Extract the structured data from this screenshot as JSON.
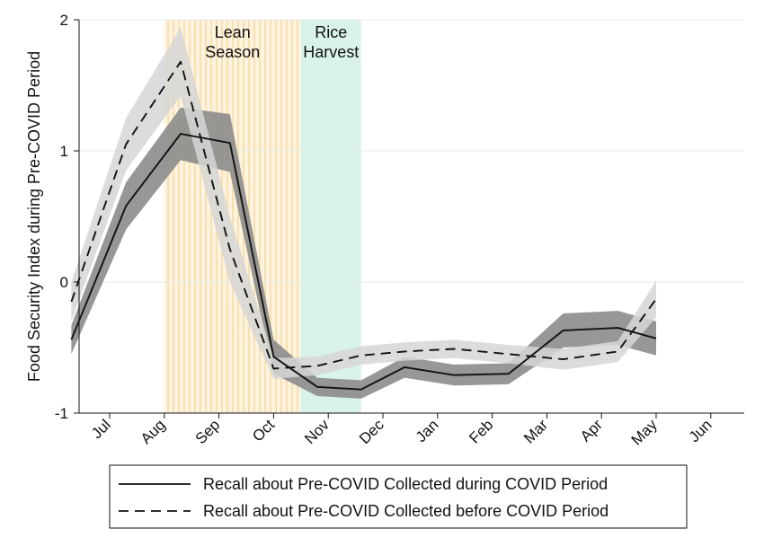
{
  "chart_data": {
    "type": "line",
    "ylabel": "Food Security Index during Pre-COVID Period",
    "xlabel": "",
    "ylim": [
      -1,
      2
    ],
    "y_ticks": [
      -1,
      0,
      1,
      2
    ],
    "month_ticks": [
      "Jul",
      "Aug",
      "Sep",
      "Oct",
      "Nov",
      "Dec",
      "Jan",
      "Feb",
      "Mar",
      "Apr",
      "May",
      "Jun"
    ],
    "grid": true,
    "legend_position": "bottom",
    "shaded_periods": [
      {
        "label_lines": [
          "Lean",
          "Season"
        ],
        "start": 1.0,
        "end": 3.5,
        "color": "#f4d08a",
        "pattern": "vertical-stripes"
      },
      {
        "label_lines": [
          "Rice",
          "Harvest"
        ],
        "start": 3.5,
        "end": 4.6,
        "color": "#cdeee6",
        "pattern": "solid"
      }
    ],
    "series": [
      {
        "name": "Recall about Pre-COVID Collected during COVID Period",
        "style": "solid",
        "line_color": "#111111",
        "ci_color": "#8c8c8c",
        "x": [
          -0.7,
          0.3,
          1.3,
          2.2,
          3.0,
          3.8,
          4.6,
          5.4,
          6.3,
          7.3,
          8.3,
          9.3,
          10.0
        ],
        "y": [
          -0.44,
          0.58,
          1.13,
          1.06,
          -0.57,
          -0.8,
          -0.82,
          -0.65,
          -0.71,
          -0.7,
          -0.37,
          -0.35,
          -0.43
        ],
        "ci_low": [
          -0.55,
          0.4,
          0.93,
          0.84,
          -0.7,
          -0.87,
          -0.89,
          -0.73,
          -0.79,
          -0.78,
          -0.5,
          -0.48,
          -0.56
        ],
        "ci_high": [
          -0.33,
          0.76,
          1.33,
          1.28,
          -0.44,
          -0.73,
          -0.75,
          -0.57,
          -0.63,
          -0.62,
          -0.24,
          -0.22,
          -0.3
        ]
      },
      {
        "name": "Recall about Pre-COVID Collected before COVID Period",
        "style": "dashed",
        "line_color": "#111111",
        "ci_color": "#d6d6d6",
        "x": [
          -0.7,
          0.3,
          1.3,
          2.2,
          3.0,
          3.8,
          4.6,
          5.4,
          6.3,
          7.3,
          8.3,
          9.3,
          10.0
        ],
        "y": [
          -0.15,
          1.05,
          1.68,
          0.25,
          -0.66,
          -0.64,
          -0.56,
          -0.53,
          -0.51,
          -0.55,
          -0.59,
          -0.53,
          -0.13
        ],
        "ci_low": [
          -0.3,
          0.85,
          1.42,
          0.0,
          -0.74,
          -0.71,
          -0.63,
          -0.6,
          -0.58,
          -0.62,
          -0.67,
          -0.61,
          -0.27
        ],
        "ci_high": [
          0.0,
          1.25,
          1.94,
          0.5,
          -0.58,
          -0.57,
          -0.49,
          -0.46,
          -0.44,
          -0.48,
          -0.51,
          -0.45,
          0.01
        ]
      }
    ]
  }
}
